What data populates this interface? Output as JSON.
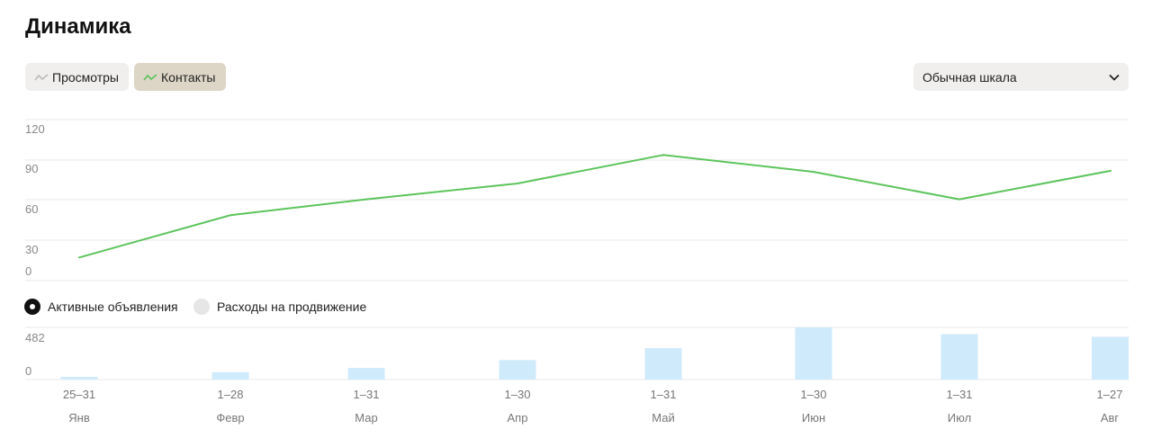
{
  "title": "Динамика",
  "toggles": [
    {
      "label": "Просмотры",
      "active": false,
      "icon": "gray-line-icon"
    },
    {
      "label": "Контакты",
      "active": true,
      "icon": "green-line-icon"
    }
  ],
  "scale_select": {
    "value": "Обычная шкала"
  },
  "radios": [
    {
      "label": "Активные объявления",
      "checked": true
    },
    {
      "label": "Расходы на продвижение",
      "checked": false
    }
  ],
  "colors": {
    "line": "#5cc45c",
    "bar": "#cfeafb",
    "grid": "#e8e8e8",
    "contacts_bg": "#ddd6c7",
    "toggle_bg": "#f0efed"
  },
  "chart_data": [
    {
      "type": "line",
      "series": [
        {
          "values": [
            10,
            50,
            65,
            80,
            107,
            91,
            65,
            92
          ]
        }
      ],
      "categories": [
        "25–31 Янв",
        "1–28 Февр",
        "1–31 Мар",
        "1–30 Апр",
        "1–31 Май",
        "1–30 Июн",
        "1–31 Июл",
        "1–27 Авг"
      ],
      "yticks": [
        "120",
        "90",
        "60",
        "30",
        "0"
      ],
      "ylim": [
        0,
        120
      ],
      "grid": true
    },
    {
      "type": "bar",
      "series": [
        {
          "values": [
            25,
            68,
            107,
            180,
            290,
            482,
            420,
            395
          ]
        }
      ],
      "categories": [
        "25–31 Янв",
        "1–28 Февр",
        "1–31 Мар",
        "1–30 Апр",
        "1–31 Май",
        "1–30 Июн",
        "1–31 Июл",
        "1–27 Авг"
      ],
      "yticks": [
        "482",
        "0"
      ],
      "ylim": [
        0,
        482
      ],
      "grid": true
    }
  ],
  "xaxis": [
    {
      "range": "25–31",
      "month": "Янв"
    },
    {
      "range": "1–28",
      "month": "Февр"
    },
    {
      "range": "1–31",
      "month": "Мар"
    },
    {
      "range": "1–30",
      "month": "Апр"
    },
    {
      "range": "1–31",
      "month": "Май"
    },
    {
      "range": "1–30",
      "month": "Июн"
    },
    {
      "range": "1–31",
      "month": "Июл"
    },
    {
      "range": "1–27",
      "month": "Авг"
    }
  ]
}
